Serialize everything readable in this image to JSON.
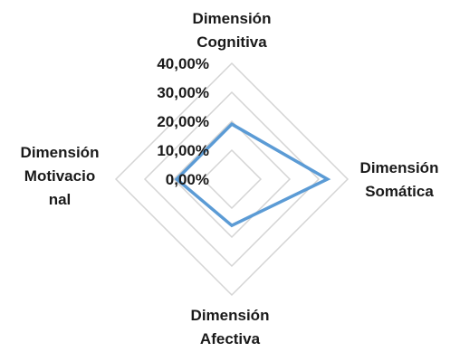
{
  "chart_data": {
    "type": "radar",
    "categories": [
      [
        "Dimensión",
        "Cognitiva"
      ],
      [
        "Dimensión",
        "Somática"
      ],
      [
        "Dimensión",
        "Afectiva"
      ],
      [
        "Dimensión",
        "Motivacio",
        "nal"
      ]
    ],
    "series": [
      {
        "values": [
          19,
          33,
          16,
          19
        ],
        "color": "#5b9bd5"
      }
    ],
    "ticks": [
      "0,00%",
      "10,00%",
      "20,00%",
      "30,00%",
      "40,00%"
    ],
    "tick_values": [
      0,
      10,
      20,
      30,
      40
    ],
    "range": [
      0,
      40
    ],
    "unit": "%",
    "grid": true,
    "grid_color": "#d4d4d4",
    "legend": "none"
  }
}
